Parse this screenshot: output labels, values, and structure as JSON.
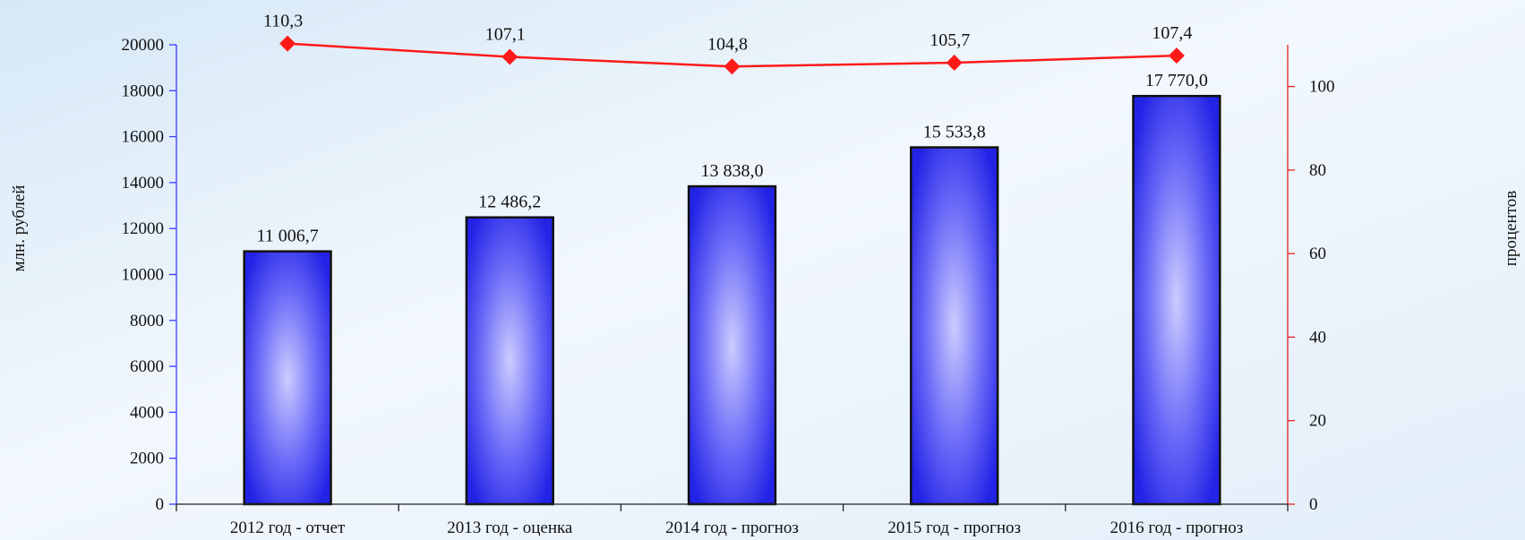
{
  "chart_data": {
    "type": "bar",
    "categories": [
      "2012 год - отчет",
      "2013 год - оценка",
      "2014 год - прогноз",
      "2015 год - прогноз",
      "2016 год - прогноз"
    ],
    "series": [
      {
        "type": "bar",
        "axis": "left",
        "values": [
          11006.7,
          12486.2,
          13838.0,
          15533.8,
          17770.0
        ],
        "labels": [
          "11 006,7",
          "12 486,2",
          "13 838,0",
          "15 533,8",
          "17 770,0"
        ]
      },
      {
        "type": "line",
        "axis": "right",
        "values": [
          110.3,
          107.1,
          104.8,
          105.7,
          107.4
        ],
        "labels": [
          "110,3",
          "107,1",
          "104,8",
          "105,7",
          "107,4"
        ]
      }
    ],
    "ylabel": "млн. рублей",
    "y2label": "процентов",
    "ylim": [
      0,
      20000
    ],
    "y2lim": [
      0,
      110
    ],
    "yticks": [
      0,
      2000,
      4000,
      6000,
      8000,
      10000,
      12000,
      14000,
      16000,
      18000,
      20000
    ],
    "y2ticks": [
      0,
      20,
      40,
      60,
      80,
      100
    ],
    "grid": false,
    "colors": {
      "bar": "#3333ee",
      "line": "#ff1a1a",
      "left_axis": "#3a3aff",
      "right_axis": "#e02020"
    }
  }
}
